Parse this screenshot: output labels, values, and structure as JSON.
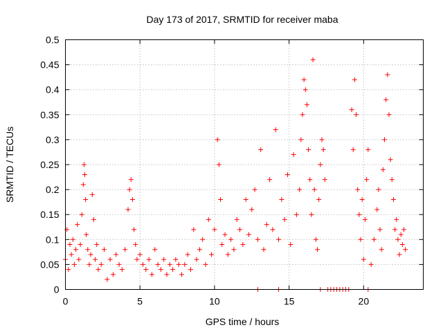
{
  "chart_data": {
    "type": "scatter",
    "title": "Day 173 of 2017, SRMTID for receiver maba",
    "xlabel": "GPS time / hours",
    "ylabel": "SRMTID / TECUs",
    "xlim": [
      0,
      24
    ],
    "ylim": [
      0,
      0.5
    ],
    "x_ticks": [
      0,
      5,
      10,
      15,
      20
    ],
    "x_tick_labels": [
      "0",
      "5",
      "10",
      "15",
      "20"
    ],
    "y_ticks": [
      0,
      0.05,
      0.1,
      0.15,
      0.2,
      0.25,
      0.3,
      0.35,
      0.4,
      0.45,
      0.5
    ],
    "y_tick_labels": [
      "0",
      "0.05",
      "0.1",
      "0.15",
      "0.2",
      "0.25",
      "0.3",
      "0.35",
      "0.4",
      "0.45",
      "0.5"
    ],
    "grid": true,
    "legend": "none",
    "marker": "+",
    "colors": {
      "series": "#ff0000",
      "axis": "#000000",
      "grid": "#a0a0a0"
    },
    "series": [
      {
        "name": "SRMTID",
        "x": [
          0.0,
          0.1,
          0.2,
          0.3,
          0.4,
          0.5,
          0.6,
          0.7,
          0.8,
          0.9,
          1.0,
          1.1,
          1.2,
          1.25,
          1.3,
          1.35,
          1.4,
          1.5,
          1.6,
          1.7,
          1.8,
          1.9,
          2.0,
          2.1,
          2.2,
          2.4,
          2.6,
          2.8,
          3.0,
          3.2,
          3.4,
          3.6,
          3.8,
          4.0,
          4.2,
          4.3,
          4.4,
          4.5,
          4.6,
          4.7,
          4.8,
          5.0,
          5.2,
          5.4,
          5.6,
          5.8,
          6.0,
          6.2,
          6.4,
          6.6,
          6.8,
          7.0,
          7.2,
          7.4,
          7.6,
          7.8,
          8.0,
          8.2,
          8.4,
          8.6,
          8.8,
          9.0,
          9.2,
          9.4,
          9.6,
          9.8,
          10.0,
          10.2,
          10.3,
          10.4,
          10.5,
          10.7,
          10.9,
          11.1,
          11.3,
          11.5,
          11.7,
          11.9,
          12.1,
          12.3,
          12.5,
          12.7,
          12.9,
          13.1,
          13.3,
          13.5,
          13.7,
          13.9,
          14.1,
          14.3,
          14.5,
          14.7,
          14.9,
          15.1,
          15.3,
          15.5,
          15.7,
          15.8,
          15.9,
          16.0,
          16.1,
          16.2,
          16.3,
          16.4,
          16.5,
          16.6,
          16.7,
          16.8,
          16.9,
          17.0,
          17.1,
          17.2,
          17.3,
          17.4,
          19.2,
          19.3,
          19.4,
          19.5,
          19.6,
          19.7,
          19.8,
          19.9,
          20.0,
          20.1,
          20.2,
          20.3,
          20.5,
          20.7,
          20.9,
          21.0,
          21.1,
          21.2,
          21.3,
          21.4,
          21.5,
          21.6,
          21.7,
          21.8,
          21.9,
          22.0,
          22.1,
          22.2,
          22.3,
          22.4,
          22.5,
          22.6,
          22.7,
          22.8,
          12.9,
          14.3,
          17.1,
          17.6,
          17.8,
          18.0,
          18.2,
          18.4,
          18.6,
          18.8,
          19.0,
          20.3
        ],
        "y": [
          0.06,
          0.12,
          0.04,
          0.09,
          0.07,
          0.1,
          0.05,
          0.08,
          0.13,
          0.06,
          0.09,
          0.15,
          0.21,
          0.25,
          0.23,
          0.18,
          0.11,
          0.08,
          0.05,
          0.07,
          0.19,
          0.14,
          0.06,
          0.09,
          0.04,
          0.05,
          0.08,
          0.02,
          0.06,
          0.03,
          0.07,
          0.05,
          0.04,
          0.08,
          0.16,
          0.2,
          0.22,
          0.18,
          0.12,
          0.09,
          0.06,
          0.07,
          0.05,
          0.04,
          0.06,
          0.03,
          0.08,
          0.05,
          0.04,
          0.06,
          0.03,
          0.05,
          0.04,
          0.06,
          0.05,
          0.03,
          0.05,
          0.07,
          0.04,
          0.12,
          0.06,
          0.08,
          0.1,
          0.05,
          0.14,
          0.07,
          0.12,
          0.3,
          0.25,
          0.18,
          0.09,
          0.11,
          0.07,
          0.1,
          0.08,
          0.14,
          0.12,
          0.09,
          0.18,
          0.11,
          0.16,
          0.2,
          0.1,
          0.28,
          0.08,
          0.13,
          0.22,
          0.12,
          0.32,
          0.1,
          0.18,
          0.14,
          0.23,
          0.09,
          0.27,
          0.15,
          0.2,
          0.3,
          0.35,
          0.42,
          0.4,
          0.37,
          0.28,
          0.22,
          0.15,
          0.46,
          0.2,
          0.1,
          0.08,
          0.18,
          0.25,
          0.3,
          0.28,
          0.22,
          0.36,
          0.28,
          0.42,
          0.35,
          0.2,
          0.15,
          0.1,
          0.18,
          0.06,
          0.14,
          0.22,
          0.28,
          0.05,
          0.1,
          0.16,
          0.2,
          0.12,
          0.08,
          0.24,
          0.3,
          0.38,
          0.43,
          0.35,
          0.26,
          0.22,
          0.18,
          0.12,
          0.14,
          0.1,
          0.07,
          0.11,
          0.09,
          0.12,
          0.08,
          0.0,
          0.0,
          0.0,
          0.0,
          0.0,
          0.0,
          0.0,
          0.0,
          0.0,
          0.0,
          0.0,
          0.0
        ]
      }
    ]
  }
}
